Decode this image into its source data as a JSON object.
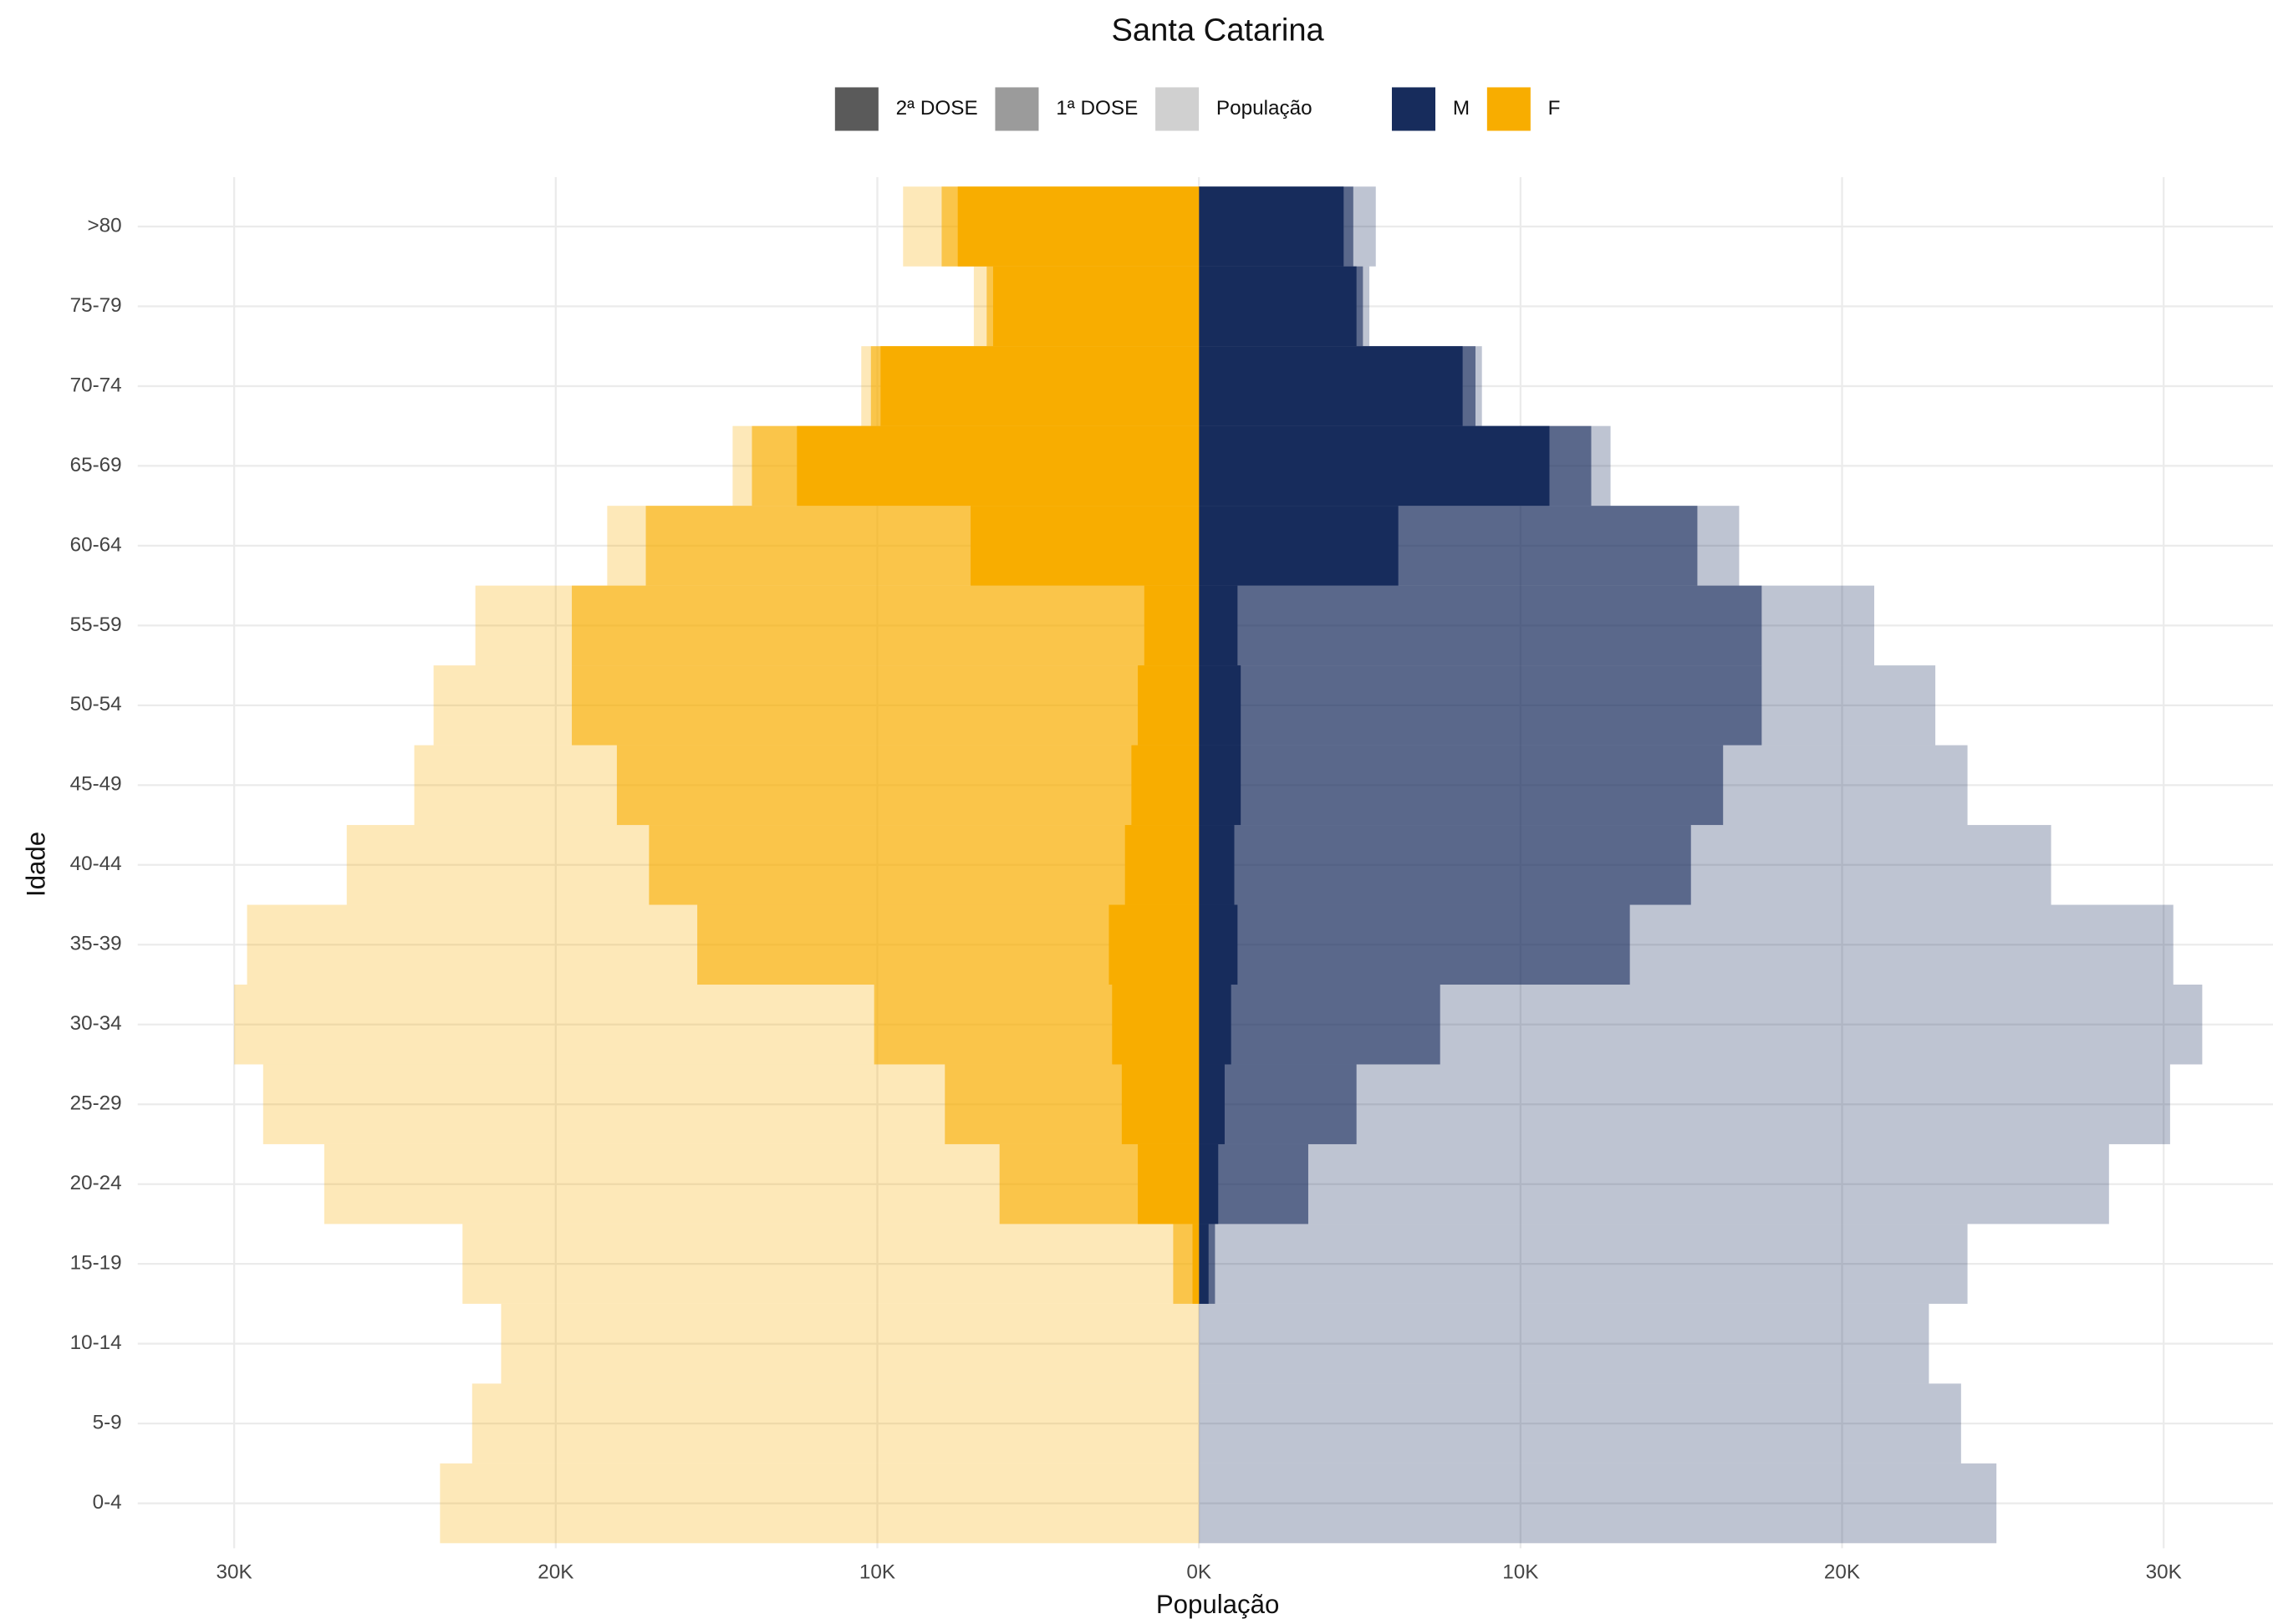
{
  "chart_data": {
    "type": "pyramid",
    "title": "Santa Catarina",
    "x_label": "População",
    "y_label": "Idade",
    "categories": [
      "0-4",
      "5-9",
      "10-14",
      "15-19",
      "20-24",
      "25-29",
      "30-34",
      "35-39",
      "40-44",
      "45-49",
      "50-54",
      "55-59",
      "60-64",
      "65-69",
      "70-74",
      "75-79",
      ">80"
    ],
    "layers": [
      {
        "name": "2ª DOSE",
        "key": "dose2",
        "opacity": 1.0,
        "legend_color": "#5a5a5a"
      },
      {
        "name": "1ª DOSE",
        "key": "dose1",
        "opacity": 0.6,
        "legend_color": "#9b9b9b"
      },
      {
        "name": "População",
        "key": "population",
        "opacity": 0.28,
        "legend_color": "#d0d0d0"
      }
    ],
    "series": [
      {
        "name": "M",
        "color": "#172c5c",
        "population": [
          24800,
          23700,
          22700,
          23900,
          28300,
          30200,
          31200,
          30300,
          26500,
          23900,
          22900,
          21000,
          16800,
          12800,
          8800,
          5300,
          5500
        ],
        "dose1": [
          0,
          0,
          0,
          500,
          3400,
          4900,
          7500,
          13400,
          15300,
          16300,
          17500,
          17500,
          15500,
          12200,
          8600,
          5100,
          4800
        ],
        "dose2": [
          0,
          0,
          0,
          300,
          600,
          800,
          1000,
          1200,
          1100,
          1300,
          1300,
          1200,
          6200,
          10900,
          8200,
          4900,
          4500
        ]
      },
      {
        "name": "F",
        "color": "#f8ad00",
        "population": [
          -23600,
          -22600,
          -21700,
          -22900,
          -27200,
          -29100,
          -30000,
          -29600,
          -26500,
          -24400,
          -23800,
          -22500,
          -18400,
          -14500,
          -10500,
          -7000,
          -9200
        ],
        "dose1": [
          0,
          0,
          0,
          -800,
          -6200,
          -7900,
          -10100,
          -15600,
          -17100,
          -18100,
          -19500,
          -19500,
          -17200,
          -13900,
          -10200,
          -6600,
          -8000
        ],
        "dose2": [
          0,
          0,
          0,
          -200,
          -1900,
          -2400,
          -2700,
          -2800,
          -2300,
          -2100,
          -1900,
          -1700,
          -7100,
          -12500,
          -9900,
          -6400,
          -7500
        ]
      }
    ],
    "xlim": [
      -33000,
      33400
    ],
    "xticks": [
      {
        "value": -30000,
        "label": "30K"
      },
      {
        "value": -20000,
        "label": "20K"
      },
      {
        "value": -10000,
        "label": "10K"
      },
      {
        "value": 0,
        "label": "0K"
      },
      {
        "value": 10000,
        "label": "10K"
      },
      {
        "value": 20000,
        "label": "20K"
      },
      {
        "value": 30000,
        "label": "30K"
      }
    ],
    "grid": true
  }
}
